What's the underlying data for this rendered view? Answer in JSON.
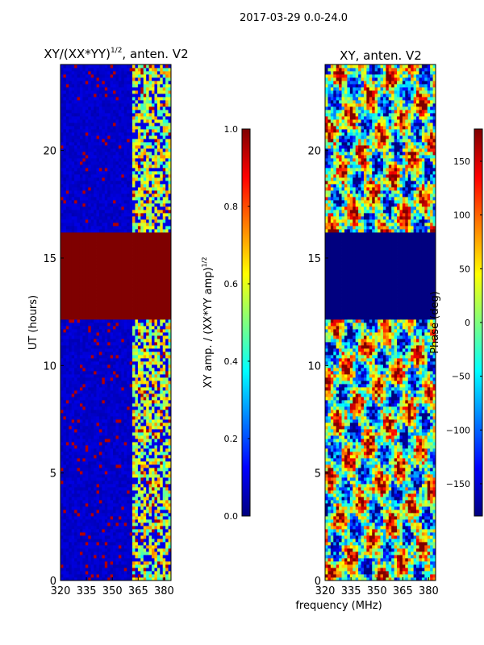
{
  "suptitle": "2017-03-29 0.0-24.0",
  "xlabel_shared": "frequency (MHz)",
  "colors": {
    "jet": [
      "#00007f",
      "#0000ff",
      "#007fff",
      "#00ffff",
      "#7fff7f",
      "#ffff00",
      "#ff7f00",
      "#ff0000",
      "#7f0000"
    ],
    "frame": "#000000",
    "background": "#ffffff"
  },
  "chart_data": [
    {
      "type": "heatmap",
      "title_main": "XY/(XX*YY)",
      "title_sup": "1/2",
      "title_rest": ", anten. V2",
      "xlabel": "",
      "ylabel": "UT (hours)",
      "xlim": [
        320,
        384
      ],
      "ylim": [
        0,
        24
      ],
      "xticks": [
        320,
        335,
        350,
        365,
        380
      ],
      "yticks": [
        0,
        5,
        10,
        15,
        20
      ],
      "colorbar": {
        "label_main": "XY amp. / (XX*YY amp)",
        "label_sup": "1/2",
        "range": [
          0.0,
          1.0
        ],
        "ticks": [
          "0.0",
          "0.2",
          "0.4",
          "0.6",
          "0.8",
          "1.0"
        ]
      },
      "features": {
        "saturated_band_hours": [
          12.2,
          16.2
        ],
        "bright_freq_range_mhz": [
          361,
          384
        ],
        "low_value": 0.05,
        "high_value": 1.0
      }
    },
    {
      "type": "heatmap",
      "title": "XY, anten. V2",
      "xlabel": "",
      "ylabel": "",
      "xlim": [
        320,
        384
      ],
      "ylim": [
        0,
        24
      ],
      "xticks": [
        320,
        335,
        350,
        365,
        380
      ],
      "yticks": [
        0,
        5,
        10,
        15,
        20
      ],
      "colorbar": {
        "label": "Phase (deg)",
        "range": [
          -180,
          180
        ],
        "ticks": [
          "−150",
          "−100",
          "−50",
          "0",
          "50",
          "100",
          "150"
        ]
      },
      "features": {
        "uniform_band_hours": [
          12.2,
          16.2
        ],
        "uniform_value_deg": -180
      }
    }
  ]
}
